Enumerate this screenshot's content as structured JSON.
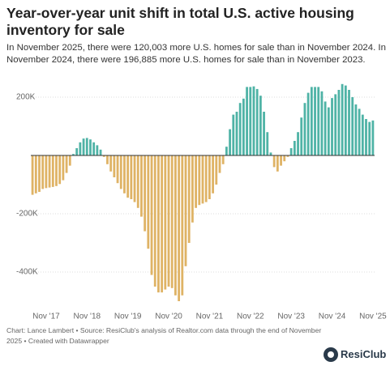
{
  "chart_data": {
    "type": "bar",
    "title": "Year-over-year unit shift in total U.S. active housing inventory for sale",
    "subtitle": "In November 2025, there were 120,003 more U.S. homes for sale than in November 2024. In November 2024, there were 196,885 more U.S. homes for sale than in November 2023.",
    "footer": "Chart: Lance Lambert • Source: ResiClub's analysis of Realtor.com data through the end of November 2025 • Created with Datawrapper",
    "logo": "ResiClub",
    "categories": [
      null,
      null,
      null,
      null,
      "Nov '17",
      null,
      null,
      null,
      null,
      null,
      null,
      null,
      null,
      null,
      null,
      null,
      "Nov '18",
      null,
      null,
      null,
      null,
      null,
      null,
      null,
      null,
      null,
      null,
      null,
      "Nov '19",
      null,
      null,
      null,
      null,
      null,
      null,
      null,
      null,
      null,
      null,
      null,
      "Nov '20",
      null,
      null,
      null,
      null,
      null,
      null,
      null,
      null,
      null,
      null,
      null,
      "Nov '21",
      null,
      null,
      null,
      null,
      null,
      null,
      null,
      null,
      null,
      null,
      null,
      "Nov '22",
      null,
      null,
      null,
      null,
      null,
      null,
      null,
      null,
      null,
      null,
      null,
      "Nov '23",
      null,
      null,
      null,
      null,
      null,
      null,
      null,
      null,
      null,
      null,
      null,
      "Nov '24",
      null,
      null,
      null,
      null,
      null,
      null,
      null,
      null,
      null,
      null,
      null,
      "Nov '25"
    ],
    "values": [
      -135000,
      -130000,
      -125000,
      -115000,
      -112000,
      -110000,
      -108000,
      -105000,
      -98000,
      -85000,
      -60000,
      -35000,
      5000,
      25000,
      45000,
      58000,
      60000,
      55000,
      45000,
      35000,
      20000,
      -5000,
      -30000,
      -55000,
      -75000,
      -95000,
      -115000,
      -130000,
      -145000,
      -150000,
      -160000,
      -180000,
      -210000,
      -260000,
      -320000,
      -410000,
      -450000,
      -470000,
      -470000,
      -460000,
      -450000,
      -455000,
      -480000,
      -500000,
      -480000,
      -380000,
      -300000,
      -230000,
      -180000,
      -170000,
      -165000,
      -160000,
      -150000,
      -130000,
      -100000,
      -60000,
      -30000,
      30000,
      90000,
      140000,
      150000,
      180000,
      195000,
      235000,
      235000,
      237000,
      228000,
      205000,
      150000,
      80000,
      10000,
      -40000,
      -55000,
      -35000,
      -20000,
      -5000,
      25000,
      50000,
      80000,
      130000,
      180000,
      215000,
      235000,
      235000,
      235000,
      220000,
      185000,
      165000,
      196885,
      210000,
      225000,
      245000,
      240000,
      225000,
      200000,
      175000,
      160000,
      140000,
      125000,
      115000,
      120003
    ],
    "positive_color": "#4fb3a6",
    "negative_color": "#dfb365",
    "ylim": [
      -520000,
      260000
    ],
    "yticks": [
      {
        "value": 200000,
        "label": "200K"
      },
      {
        "value": -200000,
        "label": "-200K"
      },
      {
        "value": -400000,
        "label": "-400K"
      }
    ],
    "grid": true
  }
}
